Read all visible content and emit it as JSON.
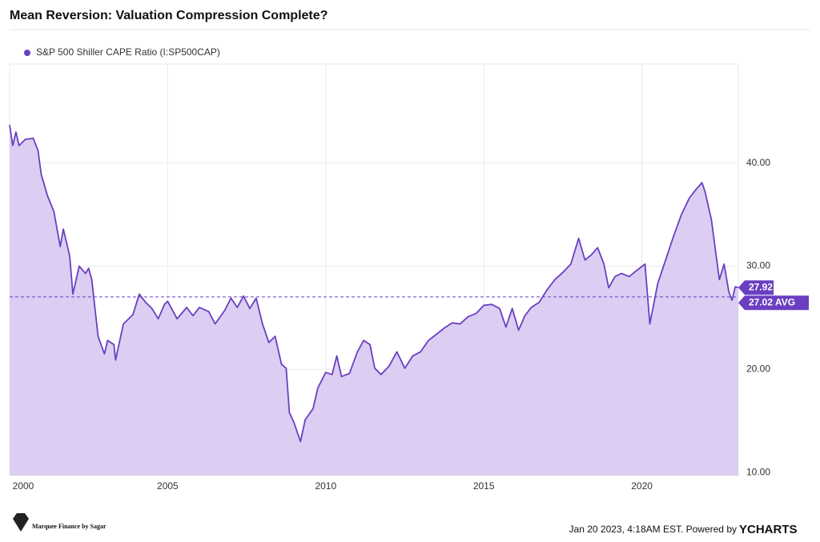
{
  "chart_data": {
    "type": "area",
    "title": "Mean Reversion: Valuation Compression Complete?",
    "x": [
      2000.0,
      2000.1,
      2000.2,
      2000.3,
      2000.5,
      2000.75,
      2000.9,
      2001.0,
      2001.2,
      2001.4,
      2001.6,
      2001.7,
      2001.9,
      2002.0,
      2002.2,
      2002.4,
      2002.5,
      2002.6,
      2002.8,
      2003.0,
      2003.1,
      2003.3,
      2003.35,
      2003.6,
      2003.9,
      2004.1,
      2004.3,
      2004.5,
      2004.7,
      2004.9,
      2005.0,
      2005.3,
      2005.6,
      2005.8,
      2006.0,
      2006.3,
      2006.5,
      2006.8,
      2007.0,
      2007.2,
      2007.4,
      2007.6,
      2007.8,
      2008.0,
      2008.2,
      2008.4,
      2008.6,
      2008.75,
      2008.85,
      2009.0,
      2009.2,
      2009.35,
      2009.6,
      2009.75,
      2010.0,
      2010.2,
      2010.35,
      2010.5,
      2010.75,
      2011.0,
      2011.2,
      2011.4,
      2011.55,
      2011.75,
      2012.0,
      2012.25,
      2012.5,
      2012.75,
      2013.0,
      2013.25,
      2013.5,
      2013.75,
      2014.0,
      2014.25,
      2014.5,
      2014.75,
      2015.0,
      2015.25,
      2015.5,
      2015.7,
      2015.9,
      2016.1,
      2016.3,
      2016.5,
      2016.75,
      2017.0,
      2017.25,
      2017.5,
      2017.75,
      2018.0,
      2018.2,
      2018.4,
      2018.6,
      2018.8,
      2018.95,
      2019.15,
      2019.35,
      2019.6,
      2019.8,
      2020.1,
      2020.25,
      2020.5,
      2020.75,
      2021.0,
      2021.25,
      2021.5,
      2021.7,
      2021.9,
      2022.0,
      2022.2,
      2022.45,
      2022.6,
      2022.75,
      2022.85,
      2022.95,
      2023.05
    ],
    "series": [
      {
        "name": "S&P 500 Shiller CAPE Ratio (I:SP500CAP)",
        "color": "#6a3fc1",
        "fill": "#dccdf3",
        "values": [
          43.7,
          41.7,
          43.0,
          41.7,
          42.3,
          42.4,
          41.2,
          38.9,
          36.8,
          35.3,
          31.9,
          33.6,
          31.0,
          27.3,
          30.0,
          29.3,
          29.8,
          28.7,
          23.2,
          21.5,
          22.8,
          22.4,
          20.9,
          24.4,
          25.3,
          27.3,
          26.5,
          25.9,
          24.9,
          26.3,
          26.6,
          24.9,
          26.0,
          25.2,
          26.0,
          25.6,
          24.4,
          25.7,
          26.9,
          26.0,
          27.1,
          25.9,
          26.9,
          24.4,
          22.6,
          23.2,
          20.5,
          20.1,
          15.8,
          14.8,
          13.0,
          15.1,
          16.2,
          18.2,
          19.7,
          19.5,
          21.3,
          19.3,
          19.6,
          21.7,
          22.8,
          22.4,
          20.1,
          19.5,
          20.3,
          21.7,
          20.1,
          21.3,
          21.7,
          22.8,
          23.4,
          24.0,
          24.5,
          24.4,
          25.1,
          25.4,
          26.2,
          26.3,
          25.9,
          24.1,
          25.9,
          23.8,
          25.2,
          26.0,
          26.5,
          27.7,
          28.7,
          29.4,
          30.2,
          32.7,
          30.6,
          31.1,
          31.8,
          30.2,
          27.9,
          29.0,
          29.3,
          29.0,
          29.5,
          30.2,
          24.4,
          28.3,
          30.6,
          32.9,
          35.0,
          36.6,
          37.4,
          38.1,
          37.2,
          34.5,
          28.7,
          30.2,
          27.5,
          26.7,
          28.0,
          27.92
        ]
      }
    ],
    "average": {
      "value": 27.02,
      "label": "27.02 AVG"
    },
    "xlim": [
      2000,
      2023.05
    ],
    "xticks": [
      2000,
      2005,
      2010,
      2015,
      2020
    ],
    "ylim": [
      9.7,
      49.6
    ],
    "yticks": [
      {
        "value": 10,
        "label": "10.00"
      },
      {
        "value": 20,
        "label": "20.00"
      },
      {
        "value": 30,
        "label": "30.00"
      },
      {
        "value": 40,
        "label": "40.00"
      }
    ],
    "grid": true,
    "footer": "Jan 20 2023, 4:18AM EST. Powered by",
    "brand": "YCHARTS",
    "watermark": "Marquee Finance by Sagar"
  }
}
